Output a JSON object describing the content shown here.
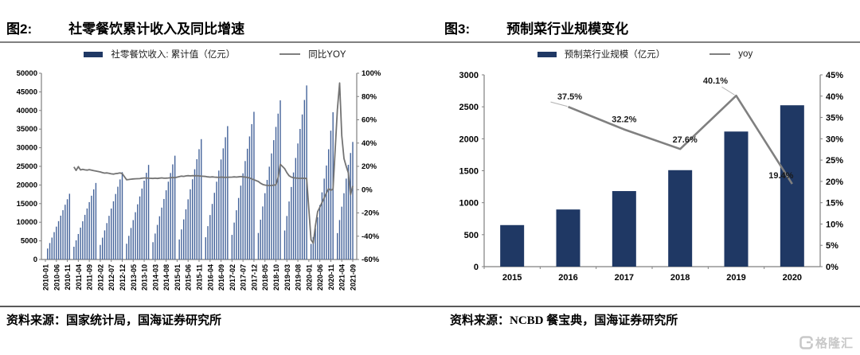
{
  "page": {
    "watermark": {
      "icon": "gelonghui-logo",
      "text": "格隆汇"
    }
  },
  "colors": {
    "navy": "#1F3864",
    "bar_blue": "#44639A",
    "line_gray_left": "#737373",
    "line_gray_right": "#808080",
    "axis_gray": "#808080",
    "leader_gray": "#b0b0b0",
    "watermark_gray": "#c8c8c8"
  },
  "figures": [
    {
      "tag": "图2:",
      "title": "社零餐饮累计收入及同比增速",
      "legend": [
        {
          "type": "bar",
          "label": "社零餐饮收入: 累计值（亿元）"
        },
        {
          "type": "line",
          "label": "同比YOY"
        }
      ],
      "source": "资料来源：国家统计局，国海证券研究所"
    },
    {
      "tag": "图3:",
      "title": "预制菜行业规模变化",
      "legend": [
        {
          "type": "bar",
          "label": "预制菜行业规模（亿元）"
        },
        {
          "type": "line",
          "label": "yoy"
        }
      ],
      "source": "资料来源：NCBD 餐宝典，国海证券研究所"
    }
  ],
  "chart_data": [
    {
      "type": "bar+line",
      "title": "社零餐饮累计收入及同比增速",
      "bar_series_name": "社零餐饮收入: 累计值（亿元）",
      "line_series_name": "同比YOY",
      "frequency": "monthly",
      "start_month": "2010-01",
      "end_month": "2021-09",
      "y_left": {
        "min": 0,
        "max": 50000,
        "step": 5000
      },
      "y_right": {
        "min": -60,
        "max": 100,
        "step": 20,
        "format": "%"
      },
      "x_tick_every": 5,
      "x_tick_labels": [
        "2010-01",
        "2010-06",
        "2010-11",
        "2011-04",
        "2011-09",
        "2012-02",
        "2012-07",
        "2012-12",
        "2013-05",
        "2013-10",
        "2014-03",
        "2014-08",
        "2015-01",
        "2015-06",
        "2015-11",
        "2016-04",
        "2016-09",
        "2017-02",
        "2017-07",
        "2017-12",
        "2018-05",
        "2018-10",
        "2019-03",
        "2019-08",
        "2020-01",
        "2020-06",
        "2020-11",
        "2021-04",
        "2021-09"
      ],
      "bar_values": [
        null,
        2941,
        4412,
        5883,
        7353,
        8824,
        10295,
        11765,
        13236,
        14707,
        16177,
        17648,
        null,
        3424,
        5136,
        6848,
        8560,
        10272,
        11983,
        13695,
        15407,
        17119,
        18831,
        20543,
        null,
        3908,
        5862,
        7816,
        9770,
        11724,
        13678,
        15632,
        17586,
        19540,
        21494,
        23448,
        null,
        4232,
        6348,
        8464,
        10580,
        12696,
        14812,
        16928,
        19044,
        21160,
        23276,
        25392,
        null,
        4643,
        6965,
        9287,
        11608,
        13930,
        16252,
        18573,
        20895,
        23217,
        25538,
        27860,
        null,
        5385,
        8078,
        10770,
        13463,
        16155,
        18848,
        21540,
        24233,
        26925,
        29618,
        32310,
        null,
        5967,
        8950,
        11933,
        14916,
        17900,
        20883,
        23866,
        26849,
        29833,
        32816,
        35799,
        null,
        6607,
        9911,
        13215,
        16518,
        19822,
        23126,
        26429,
        29733,
        33037,
        36340,
        39644,
        null,
        7119,
        10679,
        14239,
        17798,
        21358,
        24918,
        28477,
        32037,
        35597,
        39156,
        42716,
        null,
        7787,
        11680,
        15574,
        19467,
        23361,
        27254,
        31147,
        35041,
        38934,
        42828,
        46721,
        null,
        4194,
        6026,
        8333,
        11346,
        14609,
        18030,
        21714,
        25226,
        29598,
        34578,
        39527,
        null,
        7085,
        10596,
        14180,
        17789,
        21712,
        25432,
        28587,
        31557
      ],
      "line_values": [
        null,
        null,
        null,
        null,
        null,
        null,
        null,
        null,
        null,
        null,
        null,
        null,
        null,
        19.5,
        16.5,
        19.8,
        16.9,
        17.5,
        17.0,
        16.8,
        17.2,
        16.8,
        16.3,
        16.0,
        null,
        15.2,
        14.6,
        14.2,
        14.4,
        14.0,
        13.6,
        13.4,
        13.8,
        14.0,
        14.3,
        13.8,
        null,
        8.5,
        8.7,
        9.0,
        9.2,
        9.3,
        9.4,
        9.5,
        9.8,
        10.0,
        10.0,
        9.8,
        null,
        9.6,
        9.8,
        9.6,
        9.9,
        10.1,
        9.8,
        9.9,
        10.0,
        10.2,
        10.4,
        10.2,
        null,
        11.2,
        11.6,
        11.4,
        11.8,
        12.0,
        11.8,
        12.0,
        11.9,
        12.0,
        11.8,
        11.6,
        null,
        11.3,
        11.0,
        10.8,
        11.0,
        10.8,
        10.6,
        10.5,
        10.8,
        10.6,
        10.5,
        10.6,
        null,
        10.8,
        11.0,
        10.8,
        11.0,
        11.2,
        11.0,
        10.8,
        10.5,
        10.0,
        9.2,
        8.5,
        null,
        7.0,
        5.5,
        4.5,
        3.9,
        3.6,
        3.5,
        3.6,
        3.8,
        4.2,
        10.5,
        21.8,
        null,
        18.0,
        14.5,
        12.0,
        10.8,
        10.2,
        10.0,
        9.8,
        9.7,
        9.8,
        9.7,
        9.6,
        null,
        -43.1,
        -46.0,
        -31.1,
        -18.9,
        -15.2,
        -11.0,
        -7.0,
        -2.9,
        0.8,
        -0.6,
        0.4,
        null,
        68.9,
        91.6,
        46.4,
        26.6,
        20.2,
        14.3,
        -4.5,
        3.2
      ]
    },
    {
      "type": "bar+line",
      "title": "预制菜行业规模变化",
      "bar_series_name": "预制菜行业规模（亿元）",
      "line_series_name": "yoy",
      "categories": [
        "2015",
        "2016",
        "2017",
        "2018",
        "2019",
        "2020"
      ],
      "bar_values": [
        650,
        894,
        1182,
        1509,
        2113,
        2524
      ],
      "yoy_values": [
        null,
        37.5,
        32.2,
        27.6,
        40.1,
        19.4
      ],
      "yoy_labels": [
        null,
        "37.5%",
        "32.2%",
        "27.6%",
        "40.1%",
        "19.4%"
      ],
      "y_left": {
        "min": 0,
        "max": 3000,
        "step": 500
      },
      "y_right": {
        "min": 0,
        "max": 45,
        "step": 5,
        "format": "%"
      }
    }
  ]
}
